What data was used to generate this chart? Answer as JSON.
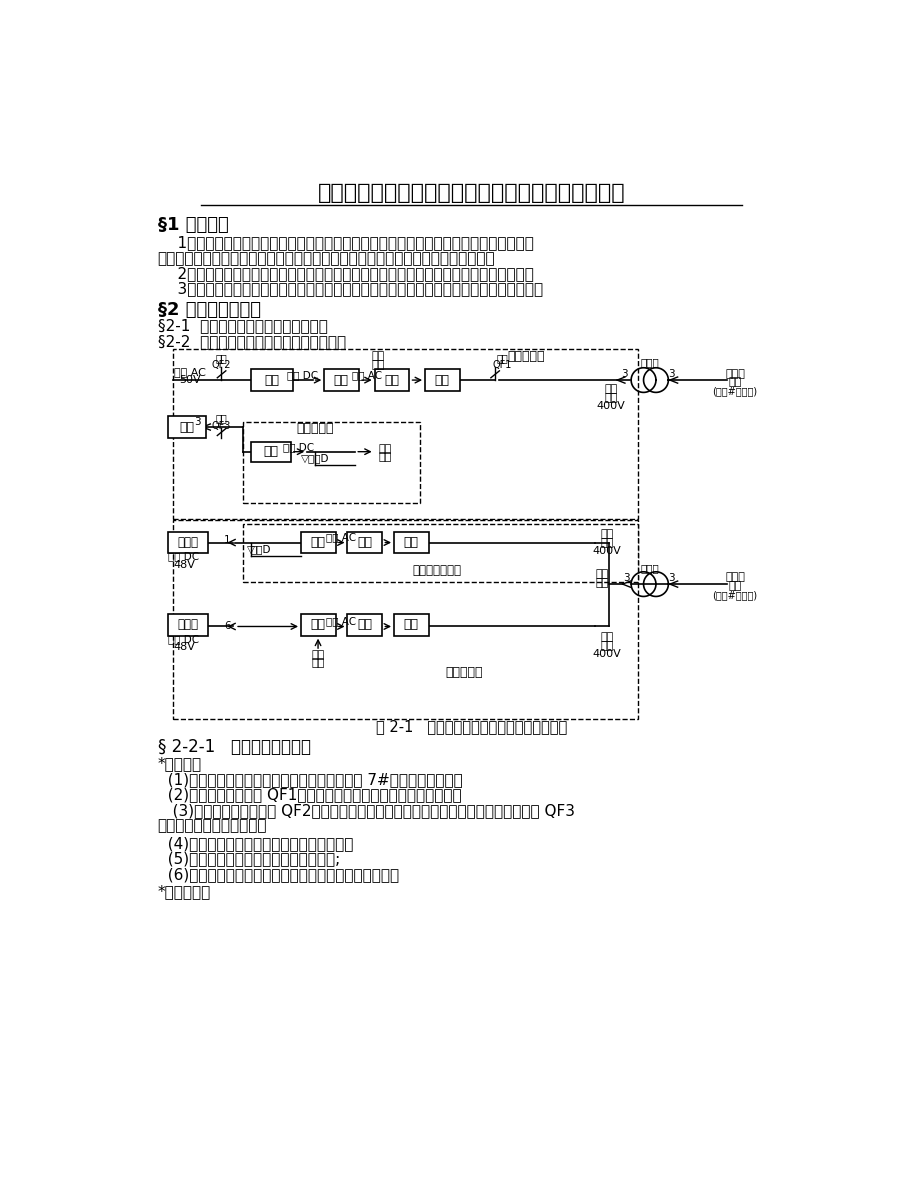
{
  "title": "实验一：分布式发电实验室情况介绍及整体演示实验",
  "section1_head": "§1 实验目的",
  "section2_head": "§2 实验内容与步骤",
  "sub21": "§2-1  分布式发电综合实验室情况介绍",
  "sub22": "§2-2  分布式发电电源投入及并网操作演示",
  "fig_caption": "图 2-1   风力发电及光伏发电基本电路流程图",
  "sub221": "§ 2-2-1   风力发电并网演示",
  "star_in": "*投入步骤",
  "step1": "  (1)确认电网接入端母线有电压（即实验室配电 7#屏母线有电压）；",
  "step2": "  (2)将配电箱左侧空开 QF1（风电并网器的电网接入端开关）合上；",
  "step3a": "   (3)合上配电箱中间空开 QF2（风电并网器的风机输入端开关），断开配电箱右侧空开 QF3",
  "step3b": "（风电单独带负载开关）；",
  "step4": "  (4)打开手动刹车开关（风电并网器底部）；",
  "step5": "  (5)按下风电并网器底部的绿色开关按钮;",
  "step6": "  (6)若自然风力不够，则合上动力屏上的轴流风机空开。",
  "star_out": "*退出步骤："
}
